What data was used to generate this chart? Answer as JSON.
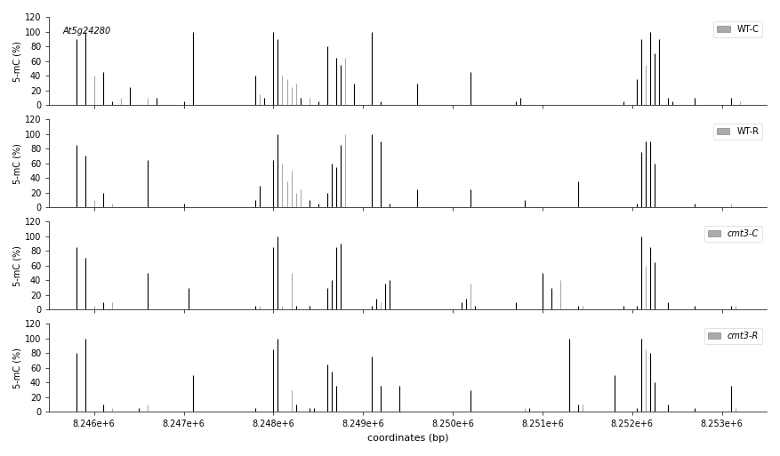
{
  "title_annotation": "At5g24280",
  "xlabel": "coordinates (bp)",
  "ylabel": "5-mC (%)",
  "ylim": [
    0,
    120
  ],
  "yticks": [
    0,
    20,
    40,
    60,
    80,
    100,
    120
  ],
  "xlim": [
    8245500,
    8253500
  ],
  "bar_color_black": "#000000",
  "bar_color_gray": "#aaaaaa",
  "background": "#ffffff",
  "legend_gray_color": "#aaaaaa",
  "panels": [
    {
      "label": "WT-C",
      "data": [
        [
          8245800,
          90,
          "black"
        ],
        [
          8245900,
          100,
          "black"
        ],
        [
          8246000,
          40,
          "gray"
        ],
        [
          8246100,
          45,
          "black"
        ],
        [
          8246200,
          5,
          "black"
        ],
        [
          8246300,
          10,
          "gray"
        ],
        [
          8246400,
          25,
          "black"
        ],
        [
          8246600,
          10,
          "gray"
        ],
        [
          8246700,
          10,
          "black"
        ],
        [
          8247000,
          5,
          "black"
        ],
        [
          8247100,
          100,
          "black"
        ],
        [
          8247800,
          40,
          "black"
        ],
        [
          8247850,
          15,
          "gray"
        ],
        [
          8247900,
          10,
          "black"
        ],
        [
          8248000,
          100,
          "black"
        ],
        [
          8248050,
          90,
          "black"
        ],
        [
          8248100,
          40,
          "gray"
        ],
        [
          8248150,
          35,
          "gray"
        ],
        [
          8248200,
          25,
          "gray"
        ],
        [
          8248250,
          30,
          "gray"
        ],
        [
          8248300,
          10,
          "black"
        ],
        [
          8248400,
          10,
          "gray"
        ],
        [
          8248500,
          5,
          "black"
        ],
        [
          8248600,
          80,
          "black"
        ],
        [
          8248700,
          65,
          "black"
        ],
        [
          8248750,
          55,
          "black"
        ],
        [
          8248800,
          65,
          "gray"
        ],
        [
          8248900,
          30,
          "black"
        ],
        [
          8249100,
          100,
          "black"
        ],
        [
          8249200,
          5,
          "black"
        ],
        [
          8249600,
          30,
          "black"
        ],
        [
          8250200,
          45,
          "black"
        ],
        [
          8250700,
          5,
          "black"
        ],
        [
          8250750,
          10,
          "black"
        ],
        [
          8251900,
          5,
          "black"
        ],
        [
          8252050,
          35,
          "black"
        ],
        [
          8252100,
          90,
          "black"
        ],
        [
          8252150,
          55,
          "gray"
        ],
        [
          8252200,
          100,
          "black"
        ],
        [
          8252250,
          70,
          "black"
        ],
        [
          8252300,
          90,
          "black"
        ],
        [
          8252400,
          10,
          "black"
        ],
        [
          8252450,
          5,
          "black"
        ],
        [
          8252700,
          10,
          "black"
        ],
        [
          8253100,
          10,
          "black"
        ],
        [
          8253200,
          5,
          "gray"
        ]
      ]
    },
    {
      "label": "WT-R",
      "data": [
        [
          8245800,
          85,
          "black"
        ],
        [
          8245900,
          70,
          "black"
        ],
        [
          8246000,
          10,
          "gray"
        ],
        [
          8246100,
          20,
          "black"
        ],
        [
          8246200,
          5,
          "gray"
        ],
        [
          8246600,
          65,
          "black"
        ],
        [
          8247000,
          5,
          "black"
        ],
        [
          8247800,
          10,
          "black"
        ],
        [
          8247850,
          30,
          "black"
        ],
        [
          8248000,
          65,
          "black"
        ],
        [
          8248050,
          100,
          "black"
        ],
        [
          8248100,
          60,
          "gray"
        ],
        [
          8248150,
          35,
          "gray"
        ],
        [
          8248200,
          50,
          "gray"
        ],
        [
          8248250,
          20,
          "gray"
        ],
        [
          8248300,
          25,
          "gray"
        ],
        [
          8248400,
          10,
          "black"
        ],
        [
          8248500,
          5,
          "black"
        ],
        [
          8248600,
          20,
          "black"
        ],
        [
          8248650,
          60,
          "black"
        ],
        [
          8248700,
          55,
          "black"
        ],
        [
          8248750,
          85,
          "black"
        ],
        [
          8248800,
          100,
          "gray"
        ],
        [
          8249100,
          100,
          "black"
        ],
        [
          8249200,
          90,
          "black"
        ],
        [
          8249300,
          5,
          "black"
        ],
        [
          8249600,
          25,
          "black"
        ],
        [
          8250200,
          25,
          "black"
        ],
        [
          8250800,
          10,
          "black"
        ],
        [
          8251400,
          35,
          "black"
        ],
        [
          8252050,
          5,
          "black"
        ],
        [
          8252100,
          75,
          "black"
        ],
        [
          8252150,
          90,
          "black"
        ],
        [
          8252200,
          90,
          "black"
        ],
        [
          8252250,
          60,
          "black"
        ],
        [
          8252700,
          5,
          "black"
        ],
        [
          8253100,
          5,
          "gray"
        ]
      ]
    },
    {
      "label": "cmt3-C",
      "data": [
        [
          8245800,
          85,
          "black"
        ],
        [
          8245900,
          70,
          "black"
        ],
        [
          8246000,
          5,
          "gray"
        ],
        [
          8246100,
          10,
          "black"
        ],
        [
          8246200,
          10,
          "gray"
        ],
        [
          8246600,
          50,
          "black"
        ],
        [
          8247050,
          30,
          "black"
        ],
        [
          8247800,
          5,
          "black"
        ],
        [
          8247850,
          5,
          "gray"
        ],
        [
          8248000,
          85,
          "black"
        ],
        [
          8248050,
          100,
          "black"
        ],
        [
          8248100,
          5,
          "gray"
        ],
        [
          8248200,
          50,
          "gray"
        ],
        [
          8248250,
          5,
          "black"
        ],
        [
          8248400,
          5,
          "black"
        ],
        [
          8248600,
          30,
          "black"
        ],
        [
          8248650,
          40,
          "black"
        ],
        [
          8248700,
          85,
          "black"
        ],
        [
          8248750,
          90,
          "black"
        ],
        [
          8249100,
          5,
          "black"
        ],
        [
          8249150,
          15,
          "black"
        ],
        [
          8249200,
          10,
          "gray"
        ],
        [
          8249250,
          35,
          "black"
        ],
        [
          8249300,
          40,
          "black"
        ],
        [
          8250100,
          10,
          "black"
        ],
        [
          8250150,
          15,
          "black"
        ],
        [
          8250200,
          35,
          "gray"
        ],
        [
          8250250,
          5,
          "black"
        ],
        [
          8250700,
          10,
          "black"
        ],
        [
          8251000,
          50,
          "black"
        ],
        [
          8251100,
          30,
          "black"
        ],
        [
          8251200,
          40,
          "gray"
        ],
        [
          8251400,
          5,
          "black"
        ],
        [
          8251450,
          5,
          "gray"
        ],
        [
          8251900,
          5,
          "black"
        ],
        [
          8252050,
          5,
          "black"
        ],
        [
          8252100,
          100,
          "black"
        ],
        [
          8252150,
          60,
          "gray"
        ],
        [
          8252200,
          85,
          "black"
        ],
        [
          8252250,
          65,
          "black"
        ],
        [
          8252400,
          10,
          "black"
        ],
        [
          8252700,
          5,
          "black"
        ],
        [
          8253100,
          5,
          "black"
        ],
        [
          8253150,
          5,
          "gray"
        ]
      ]
    },
    {
      "label": "cmt3-R",
      "data": [
        [
          8245800,
          80,
          "black"
        ],
        [
          8245900,
          100,
          "black"
        ],
        [
          8246100,
          10,
          "black"
        ],
        [
          8246200,
          5,
          "gray"
        ],
        [
          8246500,
          5,
          "black"
        ],
        [
          8246600,
          10,
          "gray"
        ],
        [
          8247100,
          50,
          "black"
        ],
        [
          8247800,
          5,
          "black"
        ],
        [
          8248000,
          85,
          "black"
        ],
        [
          8248050,
          100,
          "black"
        ],
        [
          8248200,
          30,
          "gray"
        ],
        [
          8248250,
          10,
          "black"
        ],
        [
          8248400,
          5,
          "black"
        ],
        [
          8248450,
          5,
          "black"
        ],
        [
          8248600,
          65,
          "black"
        ],
        [
          8248650,
          55,
          "black"
        ],
        [
          8248700,
          35,
          "black"
        ],
        [
          8249100,
          75,
          "black"
        ],
        [
          8249200,
          35,
          "black"
        ],
        [
          8249400,
          35,
          "black"
        ],
        [
          8250200,
          30,
          "black"
        ],
        [
          8250800,
          5,
          "gray"
        ],
        [
          8250850,
          5,
          "black"
        ],
        [
          8251300,
          100,
          "black"
        ],
        [
          8251400,
          10,
          "black"
        ],
        [
          8251450,
          10,
          "gray"
        ],
        [
          8251800,
          50,
          "black"
        ],
        [
          8252050,
          5,
          "black"
        ],
        [
          8252100,
          100,
          "black"
        ],
        [
          8252150,
          85,
          "gray"
        ],
        [
          8252200,
          80,
          "black"
        ],
        [
          8252250,
          40,
          "black"
        ],
        [
          8252400,
          10,
          "black"
        ],
        [
          8252700,
          5,
          "black"
        ],
        [
          8253100,
          35,
          "black"
        ],
        [
          8253150,
          5,
          "gray"
        ]
      ]
    }
  ]
}
